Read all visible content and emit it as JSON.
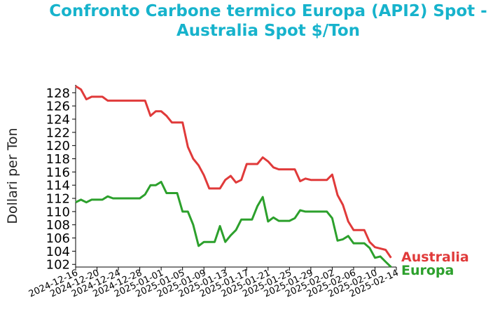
{
  "chart_data": {
    "type": "line",
    "title": "Confronto Carbone termico Europa (API2) Spot -\nAustralia Spot $/Ton",
    "xlabel": "",
    "ylabel": "Dollari per Ton",
    "xlim": [
      "2024-12-16",
      "2025-02-14"
    ],
    "ylim": [
      101.6,
      129.2
    ],
    "x_ticks": [
      "2024-12-16",
      "2024-12-20",
      "2024-12-24",
      "2024-12-28",
      "2025-01-01",
      "2025-01-05",
      "2025-01-09",
      "2025-01-13",
      "2025-01-17",
      "2025-01-21",
      "2025-01-25",
      "2025-01-29",
      "2025-02-02",
      "2025-02-06",
      "2025-02-10",
      "2025-02-14"
    ],
    "y_ticks": [
      102,
      104,
      106,
      108,
      110,
      112,
      114,
      116,
      118,
      120,
      122,
      124,
      126,
      128
    ],
    "grid": false,
    "colors": {
      "title": "#17b3cc",
      "Australia": "#e03a3a",
      "Europa": "#2ca02c"
    },
    "series": [
      {
        "name": "Australia",
        "color": "#e03a3a",
        "x": [
          "2024-12-16",
          "2024-12-17",
          "2024-12-18",
          "2024-12-19",
          "2024-12-20",
          "2024-12-21",
          "2024-12-22",
          "2024-12-23",
          "2024-12-24",
          "2024-12-25",
          "2024-12-26",
          "2024-12-27",
          "2024-12-28",
          "2024-12-29",
          "2024-12-30",
          "2024-12-31",
          "2025-01-01",
          "2025-01-02",
          "2025-01-03",
          "2025-01-04",
          "2025-01-05",
          "2025-01-06",
          "2025-01-07",
          "2025-01-08",
          "2025-01-09",
          "2025-01-10",
          "2025-01-11",
          "2025-01-12",
          "2025-01-13",
          "2025-01-14",
          "2025-01-15",
          "2025-01-16",
          "2025-01-17",
          "2025-01-18",
          "2025-01-19",
          "2025-01-20",
          "2025-01-21",
          "2025-01-22",
          "2025-01-23",
          "2025-01-24",
          "2025-01-25",
          "2025-01-26",
          "2025-01-27",
          "2025-01-28",
          "2025-01-29",
          "2025-01-30",
          "2025-01-31",
          "2025-02-01",
          "2025-02-02",
          "2025-02-03",
          "2025-02-04",
          "2025-02-05",
          "2025-02-06",
          "2025-02-07",
          "2025-02-08",
          "2025-02-09",
          "2025-02-10",
          "2025-02-11",
          "2025-02-12",
          "2025-02-13",
          "2025-02-14"
        ],
        "values": [
          129.0,
          128.5,
          127.0,
          127.4,
          127.4,
          127.4,
          126.8,
          126.8,
          126.8,
          126.8,
          126.8,
          126.8,
          126.8,
          126.8,
          124.5,
          125.2,
          125.2,
          124.5,
          123.5,
          123.5,
          123.5,
          119.8,
          118.0,
          117.0,
          115.5,
          113.5,
          113.5,
          113.5,
          114.8,
          115.4,
          114.4,
          114.8,
          117.2,
          117.2,
          117.2,
          118.2,
          117.6,
          116.7,
          116.4,
          116.4,
          116.4,
          116.4,
          114.6,
          115.0,
          114.8,
          114.8,
          114.8,
          114.8,
          115.6,
          112.5,
          111.0,
          108.5,
          107.2,
          107.2,
          107.2,
          105.4,
          104.6,
          104.4,
          104.2,
          103.0,
          null
        ]
      },
      {
        "name": "Europa",
        "color": "#2ca02c",
        "x": [
          "2024-12-16",
          "2024-12-17",
          "2024-12-18",
          "2024-12-19",
          "2024-12-20",
          "2024-12-21",
          "2024-12-22",
          "2024-12-23",
          "2024-12-24",
          "2024-12-25",
          "2024-12-26",
          "2024-12-27",
          "2024-12-28",
          "2024-12-29",
          "2024-12-30",
          "2024-12-31",
          "2025-01-01",
          "2025-01-02",
          "2025-01-03",
          "2025-01-04",
          "2025-01-05",
          "2025-01-06",
          "2025-01-07",
          "2025-01-08",
          "2025-01-09",
          "2025-01-10",
          "2025-01-11",
          "2025-01-12",
          "2025-01-13",
          "2025-01-14",
          "2025-01-15",
          "2025-01-16",
          "2025-01-17",
          "2025-01-18",
          "2025-01-19",
          "2025-01-20",
          "2025-01-21",
          "2025-01-22",
          "2025-01-23",
          "2025-01-24",
          "2025-01-25",
          "2025-01-26",
          "2025-01-27",
          "2025-01-28",
          "2025-01-29",
          "2025-01-30",
          "2025-01-31",
          "2025-02-01",
          "2025-02-02",
          "2025-02-03",
          "2025-02-04",
          "2025-02-05",
          "2025-02-06",
          "2025-02-07",
          "2025-02-08",
          "2025-02-09",
          "2025-02-10",
          "2025-02-11",
          "2025-02-12",
          "2025-02-13",
          "2025-02-14"
        ],
        "values": [
          111.4,
          111.8,
          111.4,
          111.8,
          111.8,
          111.8,
          112.3,
          112.0,
          112.0,
          112.0,
          112.0,
          112.0,
          112.0,
          112.6,
          114.0,
          114.0,
          114.5,
          112.8,
          112.8,
          112.8,
          110.0,
          110.0,
          108.0,
          104.8,
          105.4,
          105.4,
          105.4,
          107.8,
          105.4,
          106.4,
          107.2,
          108.8,
          108.8,
          108.8,
          110.8,
          112.2,
          108.5,
          109.1,
          108.6,
          108.6,
          108.6,
          109.0,
          110.2,
          110.0,
          110.0,
          110.0,
          110.0,
          110.0,
          109.0,
          105.6,
          105.8,
          106.3,
          105.2,
          105.2,
          105.2,
          104.5,
          103.0,
          103.2,
          102.4,
          101.6,
          null
        ]
      }
    ]
  }
}
